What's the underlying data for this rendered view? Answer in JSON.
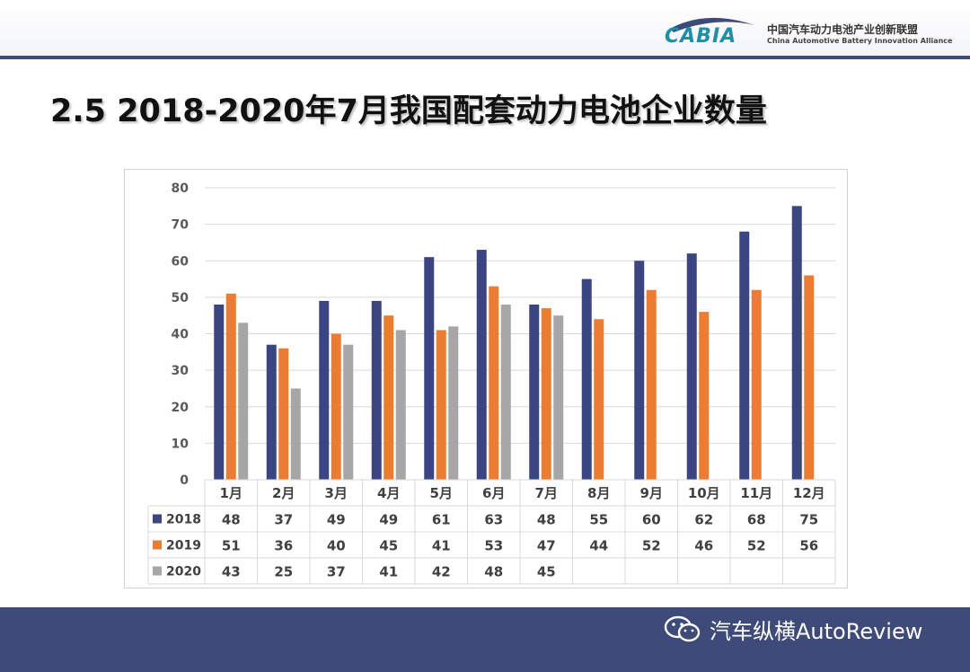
{
  "header": {
    "logo_text": "CABIA",
    "org_name_cn": "中国汽车动力电池产业创新联盟",
    "org_name_en": "China Automotive Battery Innovation Alliance"
  },
  "title": "2.5 2018-2020年7月我国配套动力电池企业数量",
  "colors": {
    "s2018": "#3b4581",
    "s2019": "#ec7c31",
    "s2020": "#a6a6a6",
    "footer": "#3e4a78"
  },
  "chart_data": {
    "type": "bar",
    "title": "",
    "xlabel": "",
    "ylabel": "",
    "ylim": [
      0,
      80
    ],
    "yticks": [
      0,
      10,
      20,
      30,
      40,
      50,
      60,
      70,
      80
    ],
    "grid": true,
    "legend": "data-table-left",
    "categories": [
      "1月",
      "2月",
      "3月",
      "4月",
      "5月",
      "6月",
      "7月",
      "8月",
      "9月",
      "10月",
      "11月",
      "12月"
    ],
    "series": [
      {
        "name": "2018",
        "values": [
          48,
          37,
          49,
          49,
          61,
          63,
          48,
          55,
          60,
          62,
          68,
          75
        ]
      },
      {
        "name": "2019",
        "values": [
          51,
          36,
          40,
          45,
          41,
          53,
          47,
          44,
          52,
          46,
          52,
          56
        ]
      },
      {
        "name": "2020",
        "values": [
          43,
          25,
          37,
          41,
          42,
          48,
          45,
          null,
          null,
          null,
          null,
          null
        ]
      }
    ]
  },
  "watermark": {
    "icon": "wechat-icon",
    "text": "汽车纵横AutoReview"
  }
}
